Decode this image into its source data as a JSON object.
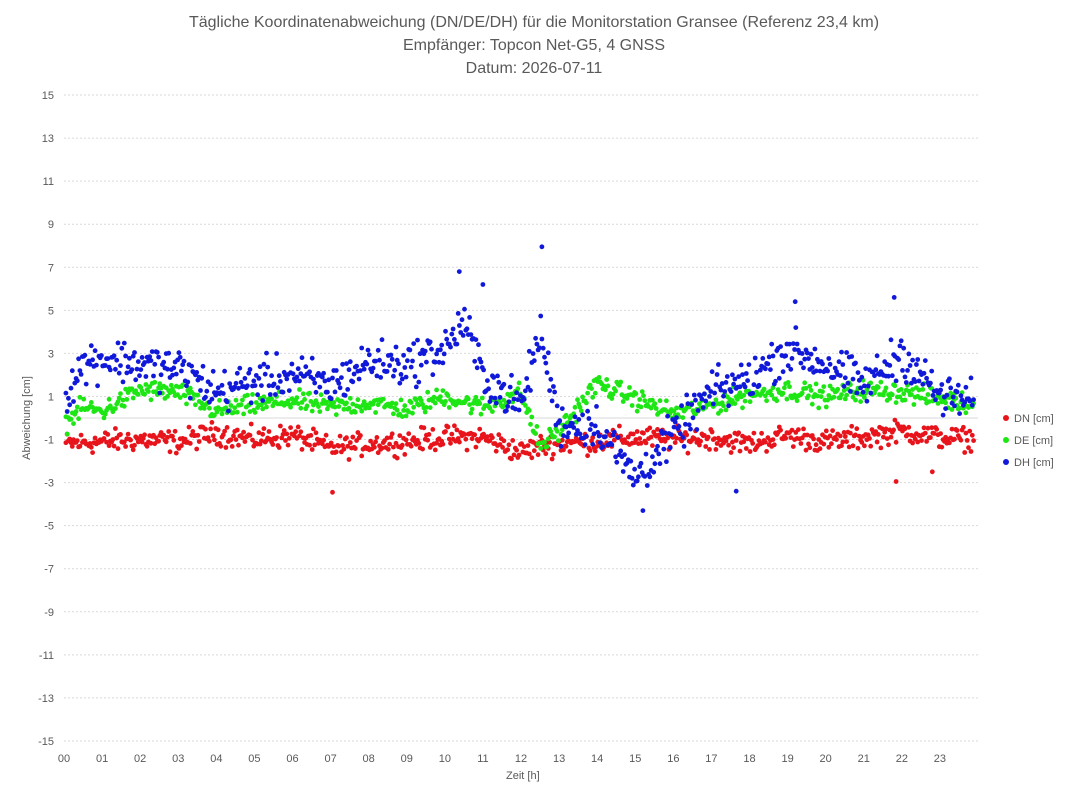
{
  "chart_data": {
    "type": "scatter",
    "title": [
      "Tägliche Koordinatenabweichung (DN/DE/DH) für die Monitorstation Gransee (Referenz 23,4 km)",
      "Empfänger: Topcon Net-G5, 4 GNSS",
      "Datum: 2026-07-11"
    ],
    "xlabel": "Zeit [h]",
    "ylabel": "Abweichung [cm]",
    "xlim": [
      0,
      24
    ],
    "ylim": [
      -15,
      15
    ],
    "x_ticks": [
      "00",
      "01",
      "02",
      "03",
      "04",
      "05",
      "06",
      "07",
      "08",
      "09",
      "10",
      "11",
      "12",
      "13",
      "14",
      "15",
      "16",
      "17",
      "18",
      "19",
      "20",
      "21",
      "22",
      "23"
    ],
    "y_ticks": [
      15,
      13,
      11,
      9,
      7,
      5,
      3,
      1,
      -1,
      -3,
      -5,
      -7,
      -9,
      -11,
      -13,
      -15
    ],
    "grid": "horizontal-dotted",
    "legend_position": "right",
    "sample_interval_min": 2,
    "series": [
      {
        "name": "DN [cm]",
        "color": "#e8141c",
        "keyframes": [
          [
            0,
            -1.2
          ],
          [
            1,
            -1.1
          ],
          [
            2,
            -1.0
          ],
          [
            3,
            -1.1
          ],
          [
            4,
            -0.7
          ],
          [
            5,
            -1.0
          ],
          [
            6,
            -0.8
          ],
          [
            7,
            -1.4
          ],
          [
            8,
            -1.2
          ],
          [
            9,
            -1.1
          ],
          [
            10,
            -0.9
          ],
          [
            11,
            -0.9
          ],
          [
            12,
            -1.6
          ],
          [
            12.5,
            -1.3
          ],
          [
            13,
            -1.2
          ],
          [
            14,
            -1.1
          ],
          [
            15,
            -0.9
          ],
          [
            16,
            -1.0
          ],
          [
            17,
            -0.9
          ],
          [
            18,
            -1.2
          ],
          [
            19,
            -0.8
          ],
          [
            20,
            -1.1
          ],
          [
            21,
            -0.9
          ],
          [
            22,
            -0.6
          ],
          [
            23,
            -0.9
          ],
          [
            23.9,
            -1.0
          ]
        ],
        "noise": 0.45,
        "outliers": [
          [
            7.05,
            -3.45
          ],
          [
            21.85,
            -2.95
          ],
          [
            22.8,
            -2.5
          ]
        ]
      },
      {
        "name": "DE [cm]",
        "color": "#1ee614",
        "keyframes": [
          [
            0,
            -0.3
          ],
          [
            0.5,
            0.5
          ],
          [
            1,
            0.3
          ],
          [
            2,
            1.3
          ],
          [
            3,
            1.2
          ],
          [
            4,
            0.3
          ],
          [
            5,
            0.6
          ],
          [
            6,
            0.8
          ],
          [
            7,
            0.5
          ],
          [
            8,
            0.7
          ],
          [
            9,
            0.4
          ],
          [
            10,
            1.0
          ],
          [
            11,
            0.5
          ],
          [
            12,
            1.2
          ],
          [
            12.5,
            -1.3
          ],
          [
            13,
            -0.6
          ],
          [
            14,
            1.6
          ],
          [
            15,
            0.9
          ],
          [
            16,
            0.2
          ],
          [
            17,
            0.6
          ],
          [
            18,
            1.1
          ],
          [
            19,
            1.3
          ],
          [
            20,
            1.0
          ],
          [
            21,
            1.3
          ],
          [
            22,
            1.2
          ],
          [
            23,
            0.9
          ],
          [
            23.9,
            0.6
          ]
        ],
        "noise": 0.4,
        "outliers": []
      },
      {
        "name": "DH [cm]",
        "color": "#1019d9",
        "keyframes": [
          [
            0,
            1.0
          ],
          [
            0.5,
            2.5
          ],
          [
            1,
            2.8
          ],
          [
            2,
            2.5
          ],
          [
            3,
            2.3
          ],
          [
            4,
            1.2
          ],
          [
            5,
            1.7
          ],
          [
            6,
            2.0
          ],
          [
            7,
            1.5
          ],
          [
            8,
            2.6
          ],
          [
            9,
            2.5
          ],
          [
            10,
            3.2
          ],
          [
            10.5,
            4.5
          ],
          [
            11,
            2.0
          ],
          [
            12,
            0.5
          ],
          [
            12.5,
            4.0
          ],
          [
            13,
            -0.3
          ],
          [
            14,
            -0.3
          ],
          [
            15,
            -2.8
          ],
          [
            16,
            -0.8
          ],
          [
            17,
            1.2
          ],
          [
            18,
            1.8
          ],
          [
            19,
            3.2
          ],
          [
            20,
            2.5
          ],
          [
            21,
            1.5
          ],
          [
            22,
            3.0
          ],
          [
            23,
            1.0
          ],
          [
            23.9,
            0.8
          ]
        ],
        "noise": 0.85,
        "outliers": [
          [
            12.55,
            7.95
          ],
          [
            10.38,
            6.8
          ],
          [
            11.0,
            6.2
          ],
          [
            15.2,
            -4.3
          ],
          [
            17.65,
            -3.4
          ],
          [
            21.8,
            5.6
          ],
          [
            19.2,
            5.4
          ]
        ]
      }
    ]
  }
}
